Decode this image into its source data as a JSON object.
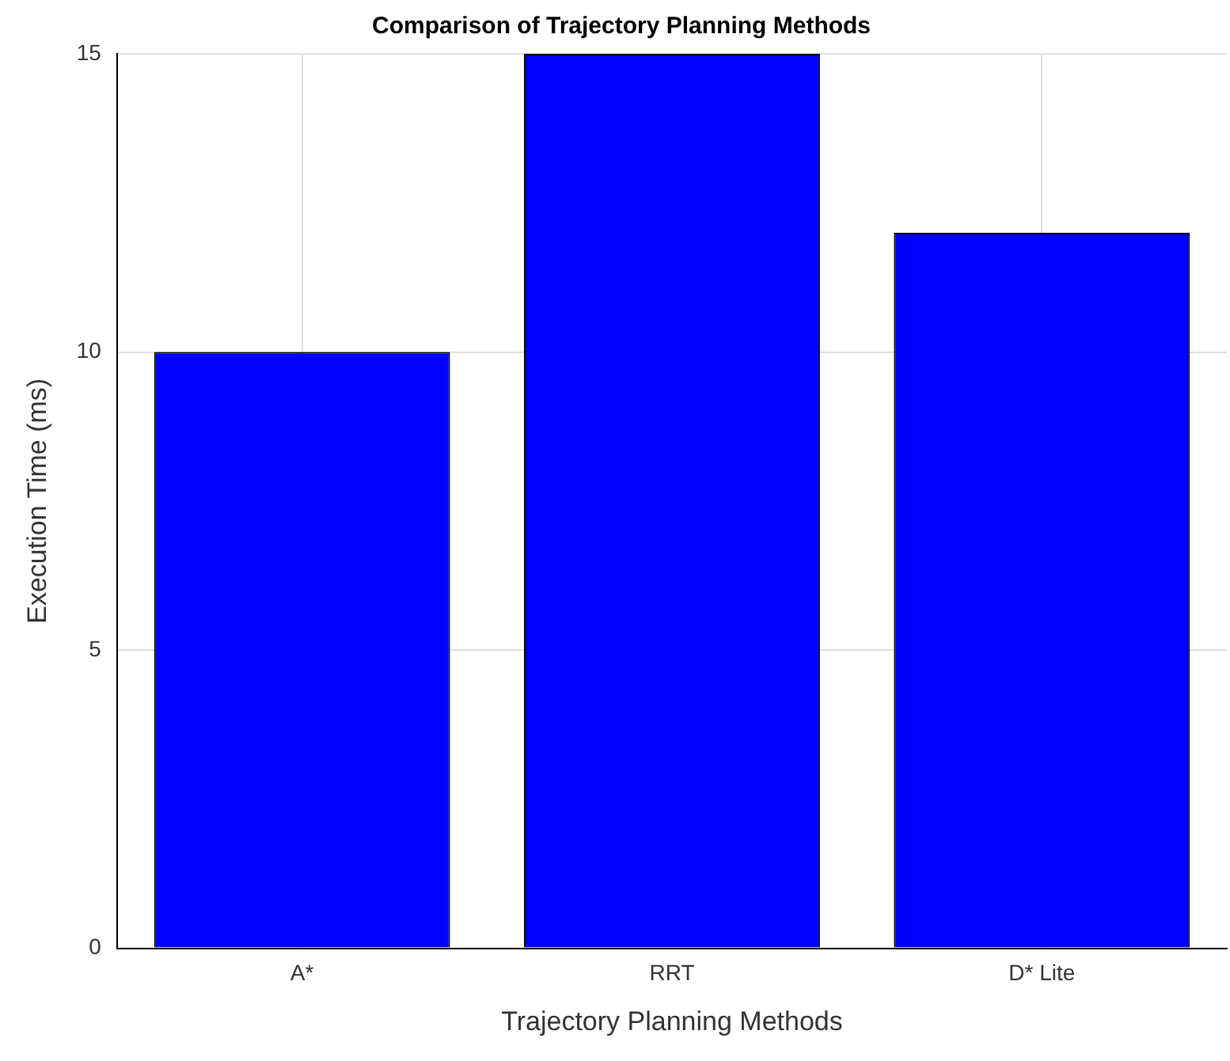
{
  "chart_data": {
    "type": "bar",
    "title": "Comparison of Trajectory Planning Methods",
    "xlabel": "Trajectory Planning Methods",
    "ylabel": "Execution Time (ms)",
    "categories": [
      "A*",
      "RRT",
      "D* Lite"
    ],
    "values": [
      10,
      15,
      12
    ],
    "color": "#0000ff",
    "ylim": [
      0,
      15
    ],
    "yticks": [
      0,
      5,
      10,
      15
    ],
    "grid": true
  }
}
